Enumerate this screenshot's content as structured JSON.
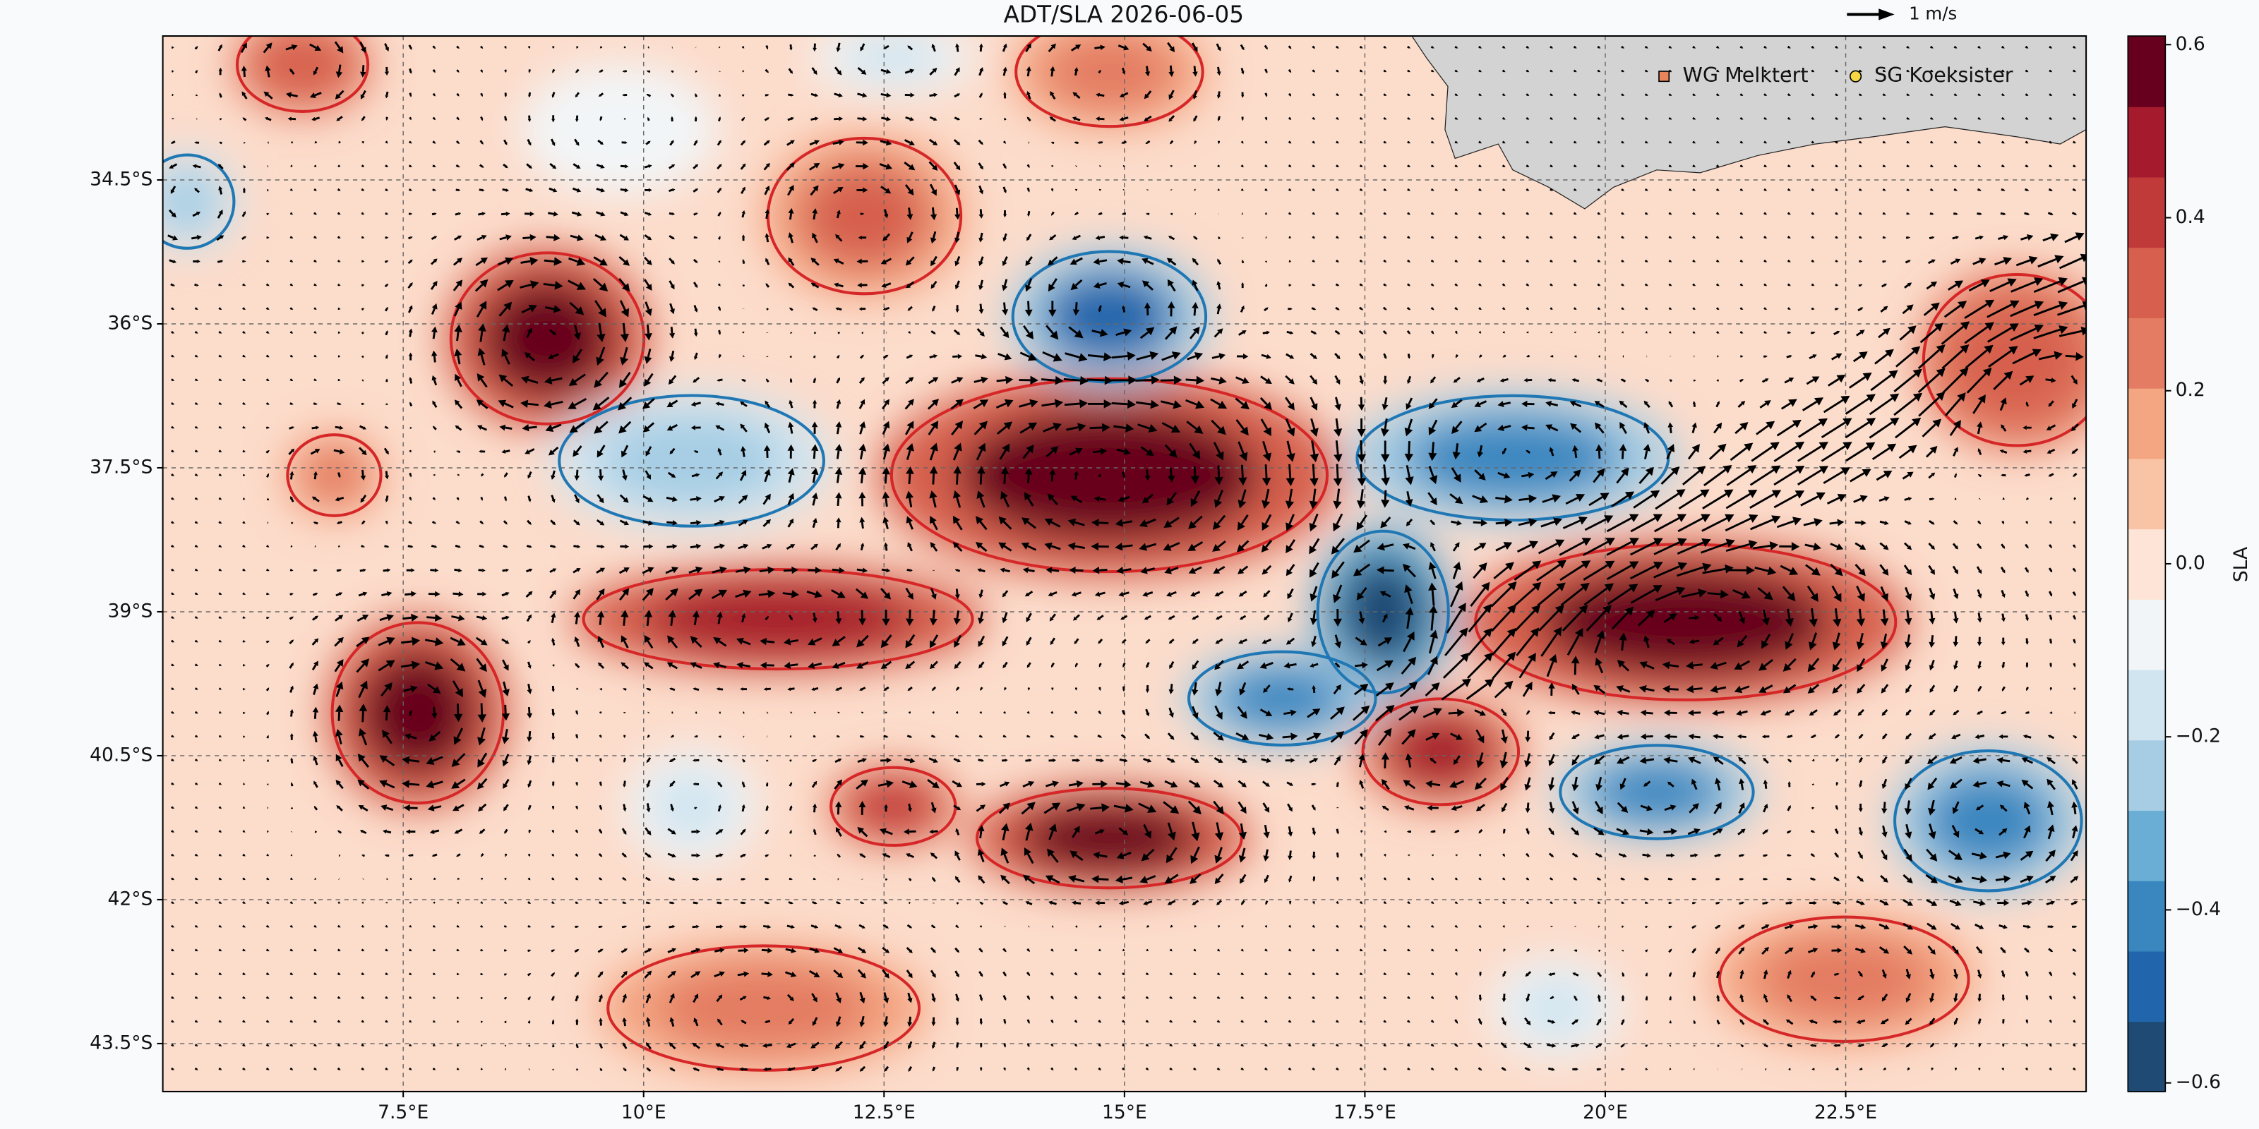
{
  "chart_data": {
    "type": "map",
    "title": "ADT/SLA 2026-06-05",
    "xlim": [
      5,
      25
    ],
    "ylim": [
      -44,
      -33
    ],
    "xticks": [
      {
        "value": 7.5,
        "label": "7.5°E"
      },
      {
        "value": 10,
        "label": "10°E"
      },
      {
        "value": 12.5,
        "label": "12.5°E"
      },
      {
        "value": 15,
        "label": "15°E"
      },
      {
        "value": 17.5,
        "label": "17.5°E"
      },
      {
        "value": 20,
        "label": "20°E"
      },
      {
        "value": 22.5,
        "label": "22.5°E"
      }
    ],
    "yticks": [
      {
        "value": -34.5,
        "label": "34.5°S"
      },
      {
        "value": -36,
        "label": "36°S"
      },
      {
        "value": -37.5,
        "label": "37.5°S"
      },
      {
        "value": -39,
        "label": "39°S"
      },
      {
        "value": -40.5,
        "label": "40.5°S"
      },
      {
        "value": -42,
        "label": "42°S"
      },
      {
        "value": -43.5,
        "label": "43.5°S"
      }
    ],
    "grid": true,
    "colorbar": {
      "label": "SLA",
      "lim": [
        -0.61,
        0.61
      ],
      "ticks": [
        0.6,
        0.4,
        0.2,
        {
          "value": 0,
          "label": "0.0"
        },
        {
          "value": -0.2,
          "label": "−0.2"
        },
        {
          "value": -0.4,
          "label": "−0.4"
        },
        {
          "value": -0.6,
          "label": "−0.6"
        }
      ],
      "colormap": [
        "#1f4a73",
        "#2166ac",
        "#3a87c0",
        "#6aaed6",
        "#a6cde4",
        "#d1e5f0",
        "#f2f5f7",
        "#fde4d6",
        "#f9c3a6",
        "#f4a582",
        "#e37c62",
        "#d6604d",
        "#c13a3a",
        "#a51a2c",
        "#67001f"
      ]
    },
    "legend": {
      "loc": "upper right",
      "entries": [
        {
          "name": "WG Melktert",
          "color": "#e8855a",
          "marker": "square"
        },
        {
          "name": "SG Koeksister",
          "color": "#f5d742",
          "marker": "circle"
        }
      ]
    },
    "quiver_key": {
      "label": "1 m/s"
    }
  }
}
